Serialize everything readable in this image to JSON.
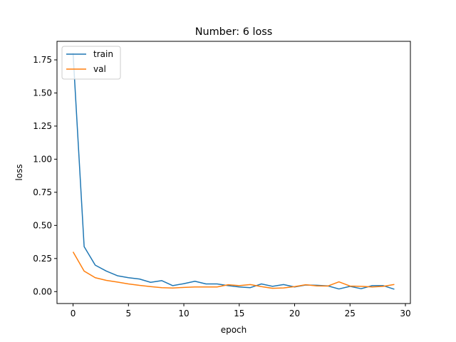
{
  "chart_data": {
    "type": "line",
    "title": "Number: 6 loss",
    "xlabel": "epoch",
    "ylabel": "loss",
    "xlim": [
      -1.45,
      30.45
    ],
    "ylim": [
      -0.09,
      1.89
    ],
    "xticks": [
      0,
      5,
      10,
      15,
      20,
      25,
      30
    ],
    "xtick_labels": [
      "0",
      "5",
      "10",
      "15",
      "20",
      "25",
      "30"
    ],
    "yticks": [
      0.0,
      0.25,
      0.5,
      0.75,
      1.0,
      1.25,
      1.5,
      1.75
    ],
    "ytick_labels": [
      "0.00",
      "0.25",
      "0.50",
      "0.75",
      "1.00",
      "1.25",
      "1.50",
      "1.75"
    ],
    "grid": false,
    "legend_position": "top-left",
    "x": [
      0,
      1,
      2,
      3,
      4,
      5,
      6,
      7,
      8,
      9,
      10,
      11,
      12,
      13,
      14,
      15,
      16,
      17,
      18,
      19,
      20,
      21,
      22,
      23,
      24,
      25,
      26,
      27,
      28,
      29
    ],
    "series": [
      {
        "name": "train",
        "color": "#1f77b4",
        "values": [
          1.8,
          0.34,
          0.2,
          0.155,
          0.12,
          0.105,
          0.095,
          0.07,
          0.083,
          0.045,
          0.06,
          0.078,
          0.058,
          0.058,
          0.045,
          0.035,
          0.03,
          0.058,
          0.04,
          0.053,
          0.035,
          0.05,
          0.048,
          0.043,
          0.02,
          0.04,
          0.022,
          0.045,
          0.045,
          0.018
        ]
      },
      {
        "name": "val",
        "color": "#ff7f0e",
        "values": [
          0.3,
          0.155,
          0.105,
          0.085,
          0.072,
          0.058,
          0.047,
          0.038,
          0.03,
          0.027,
          0.032,
          0.035,
          0.035,
          0.035,
          0.052,
          0.045,
          0.053,
          0.038,
          0.025,
          0.028,
          0.038,
          0.052,
          0.043,
          0.042,
          0.074,
          0.042,
          0.04,
          0.035,
          0.04,
          0.054
        ]
      }
    ]
  }
}
